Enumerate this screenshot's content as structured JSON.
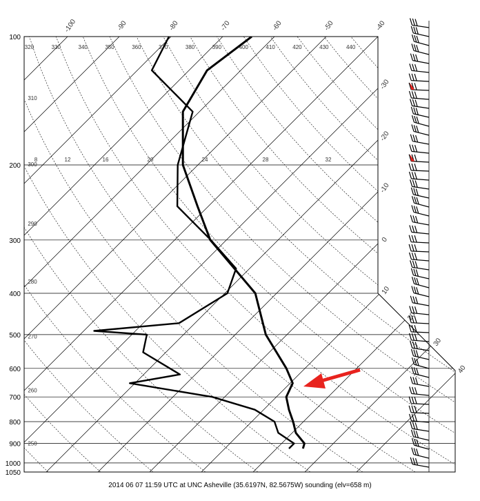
{
  "chart_data": {
    "type": "skewt",
    "caption": "2014 06 07 11:59 UTC at UNC Asheville (35.6197N, 82.5675W) sounding (elv=658 m)",
    "y_scale": "log",
    "ylim": [
      1050,
      100
    ],
    "yticks": [
      100,
      200,
      300,
      400,
      500,
      600,
      700,
      800,
      900,
      1000,
      1050
    ],
    "isotherms": [
      -100,
      -90,
      -80,
      -70,
      -60,
      -50,
      -40,
      -30,
      -20,
      -10,
      0,
      10,
      20,
      30,
      40
    ],
    "dry_adiabats": [
      250,
      260,
      270,
      280,
      290,
      300,
      310,
      320,
      330,
      340,
      350,
      360,
      370,
      380,
      390,
      400,
      410,
      420,
      430,
      440
    ],
    "mixing_ratio_labels": [
      8,
      12,
      16,
      20,
      24,
      28,
      32
    ],
    "series": [
      {
        "color": "#000000",
        "pressure": [
          925,
          900,
          850,
          800,
          750,
          700,
          650,
          600,
          500,
          400,
          300,
          250,
          200,
          150,
          120,
          100
        ],
        "values": [
          25.1,
          24.4,
          20.7,
          18.0,
          14.9,
          11.9,
          10.5,
          6.4,
          -4.1,
          -14.1,
          -33.1,
          -42.1,
          -52.9,
          -63.2,
          -66.5,
          -64.4
        ]
      },
      {
        "color": "#000000",
        "pressure": [
          925,
          900,
          850,
          800,
          750,
          700,
          650,
          620,
          550,
          500,
          490,
          470,
          400,
          350,
          300,
          250,
          200,
          150,
          120,
          100
        ],
        "values": [
          22.4,
          22.4,
          17.3,
          14.4,
          8.3,
          -2.4,
          -21,
          -13,
          -24.4,
          -27.1,
          -38,
          -23.1,
          -19.5,
          -22.6,
          -33,
          -46,
          -53.9,
          -61.3,
          -77.2,
          -80.4
        ]
      }
    ]
  }
}
